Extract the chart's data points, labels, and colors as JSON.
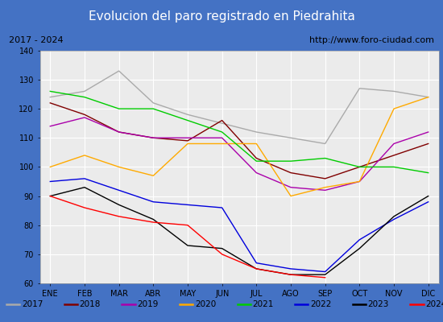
{
  "title": "Evolucion del paro registrado en Piedrahita",
  "subtitle_left": "2017 - 2024",
  "subtitle_right": "http://www.foro-ciudad.com",
  "months": [
    "ENE",
    "FEB",
    "MAR",
    "ABR",
    "MAY",
    "JUN",
    "JUL",
    "AGO",
    "SEP",
    "OCT",
    "NOV",
    "DIC"
  ],
  "ylim": [
    60,
    140
  ],
  "yticks": [
    60,
    70,
    80,
    90,
    100,
    110,
    120,
    130,
    140
  ],
  "series": {
    "2017": {
      "color": "#aaaaaa",
      "values": [
        124,
        126,
        133,
        122,
        118,
        115,
        112,
        110,
        108,
        127,
        126,
        124
      ]
    },
    "2018": {
      "color": "#800000",
      "values": [
        122,
        118,
        112,
        110,
        109,
        116,
        103,
        98,
        96,
        100,
        104,
        108
      ]
    },
    "2019": {
      "color": "#aa00aa",
      "values": [
        114,
        117,
        112,
        110,
        110,
        110,
        98,
        93,
        92,
        95,
        108,
        112
      ]
    },
    "2020": {
      "color": "#ffaa00",
      "values": [
        100,
        104,
        100,
        97,
        108,
        108,
        108,
        90,
        93,
        95,
        120,
        124
      ]
    },
    "2021": {
      "color": "#00cc00",
      "values": [
        126,
        124,
        120,
        120,
        116,
        112,
        102,
        102,
        103,
        100,
        100,
        98
      ]
    },
    "2022": {
      "color": "#0000dd",
      "values": [
        95,
        96,
        92,
        88,
        87,
        86,
        67,
        65,
        64,
        75,
        82,
        88
      ]
    },
    "2023": {
      "color": "#000000",
      "values": [
        90,
        93,
        87,
        82,
        73,
        72,
        65,
        63,
        63,
        72,
        83,
        90
      ]
    },
    "2024": {
      "color": "#ff0000",
      "values": [
        90,
        86,
        83,
        81,
        80,
        70,
        65,
        63,
        62,
        null,
        null,
        null
      ]
    }
  },
  "title_bg": "#4472c4",
  "title_color": "#ffffff",
  "plot_bg": "#ebebeb",
  "grid_color": "#ffffff",
  "title_fontsize": 11,
  "tick_fontsize": 7,
  "legend_fontsize": 7.5
}
